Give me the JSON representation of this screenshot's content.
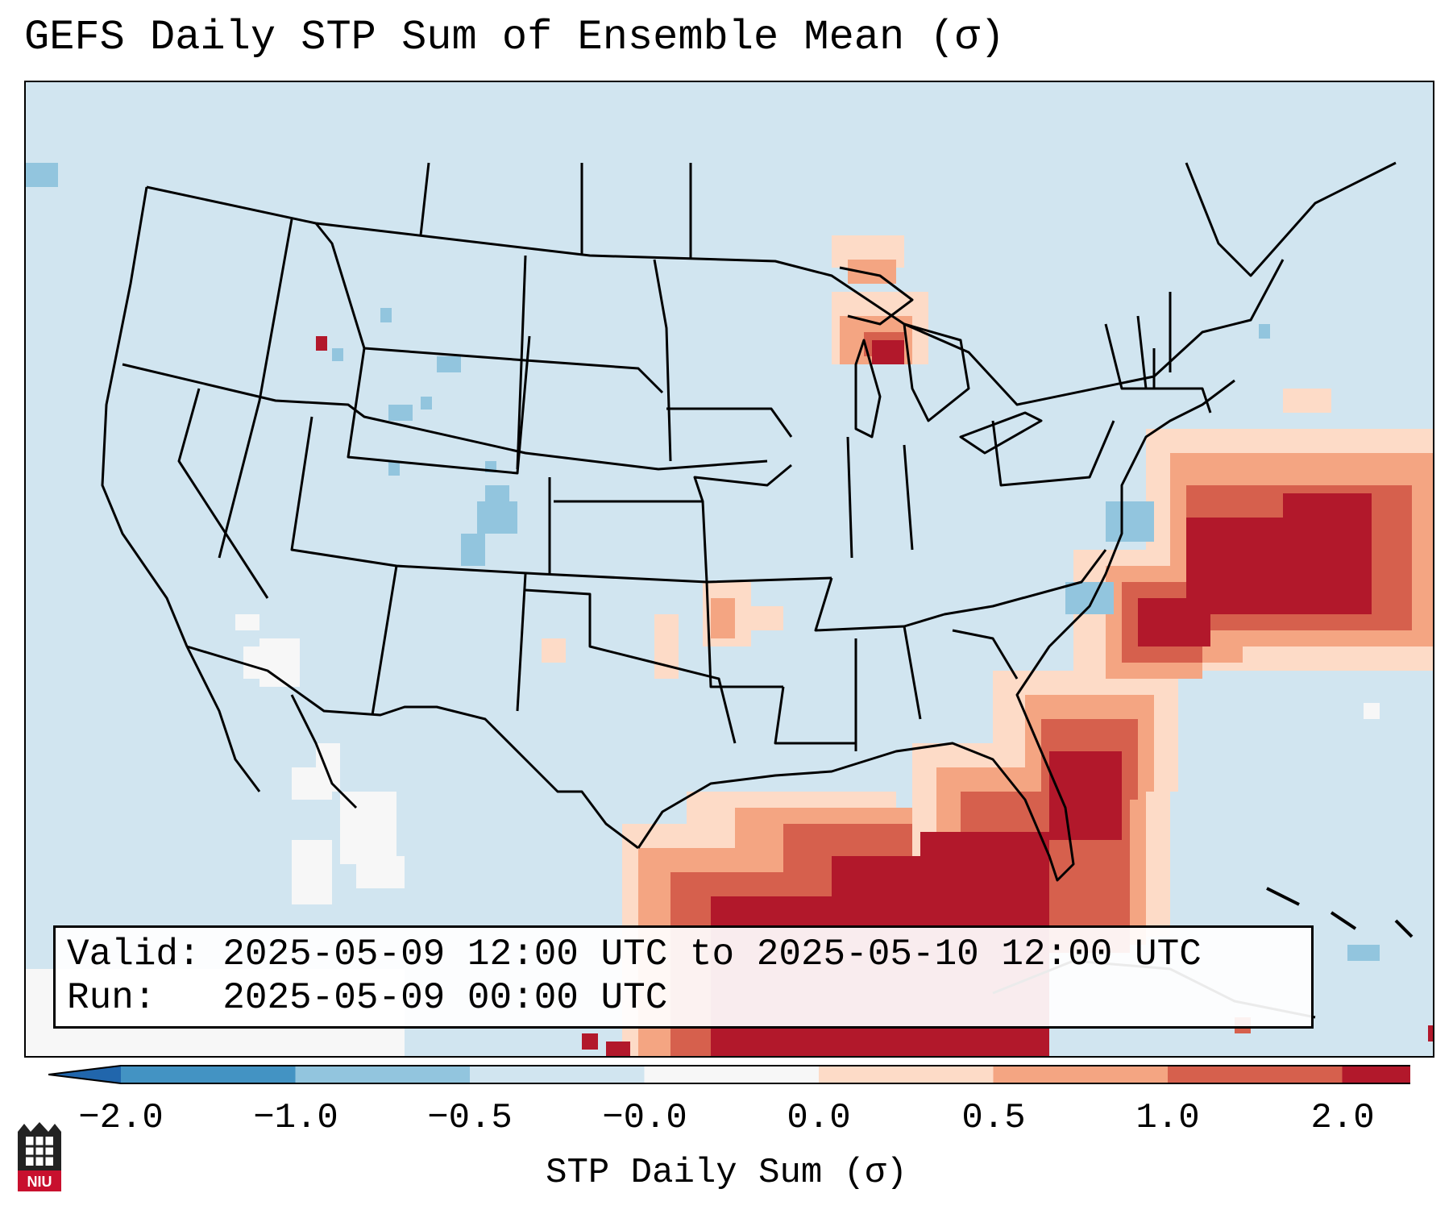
{
  "title": "GEFS Daily STP Sum of Ensemble Mean (σ)",
  "info": {
    "valid": "Valid: 2025-05-09 12:00 UTC to 2025-05-10 12:00 UTC",
    "run": "Run:   2025-05-09 00:00 UTC"
  },
  "colorbar": {
    "label": "STP Daily Sum (σ)",
    "tick_labels": [
      "−2.0",
      "−1.0",
      "−0.5",
      "−0.0",
      "0.0",
      "0.5",
      "1.0",
      "2.0"
    ],
    "colors": [
      "#4393c3",
      "#92c5de",
      "#d1e5f0",
      "#f7f7f7",
      "#fddbc7",
      "#f4a582",
      "#d6604d",
      "#b2182b"
    ],
    "extend_low_color": "#2166ac",
    "extend_high_color": "#b2182b"
  },
  "map": {
    "region": "Contiguous United States",
    "background_color": "#d1e5f0",
    "highlights": [
      {
        "area": "Southeast Gulf and Florida",
        "level": "2.0"
      },
      {
        "area": "Carolina and Mid-Atlantic coast / offshore Atlantic",
        "level": "2.0"
      },
      {
        "area": "Northern Wisconsin / Lake Superior",
        "level": "2.0"
      },
      {
        "area": "Southern Plains (Oklahoma / Texas panhandle)",
        "level": "0.5"
      }
    ]
  },
  "logo": {
    "text": "NIU"
  }
}
